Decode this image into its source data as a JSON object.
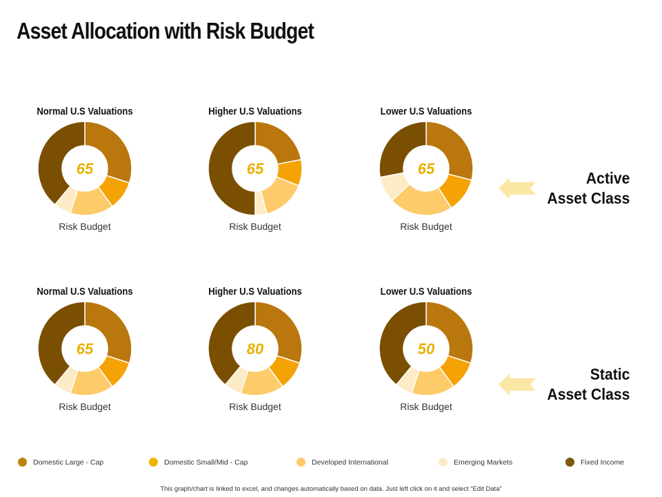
{
  "title": "Asset Allocation with Risk Budget",
  "colors": {
    "domestic_large_cap": "#B9770E",
    "domestic_small_mid_cap": "#F5A205",
    "developed_international": "#FDCB6A",
    "emerging_markets": "#FDEBC6",
    "fixed_income": "#7A4F01",
    "center_value": "#E8B200",
    "arrow": "#FBE7A4"
  },
  "rows": [
    {
      "label_line1": "Active",
      "label_line2": "Asset Class"
    },
    {
      "label_line1": "Static",
      "label_line2": "Asset Class"
    }
  ],
  "legend": [
    {
      "label": "Domestic Large - Cap",
      "color": "#B9860C"
    },
    {
      "label": "Domestic Small/Mid  - Cap",
      "color": "#F0B400"
    },
    {
      "label": "Developed International",
      "color": "#FDCB6A"
    },
    {
      "label": "Emerging  Markets",
      "color": "#FDEBC6"
    },
    {
      "label": "Fixed Income",
      "color": "#7A5C0A"
    }
  ],
  "footnote": "This graph/chart is linked to excel, and changes automatically based on data. Just left click on it and select “Edit Data”",
  "chart_data": [
    {
      "type": "pie",
      "row": "Active",
      "title": "Normal U.S Valuations",
      "center_value": "65",
      "sublabel": "Risk Budget",
      "labels": [
        "Domestic Large - Cap",
        "Domestic Small/Mid  - Cap",
        "Developed International",
        "Emerging  Markets",
        "Fixed Income"
      ],
      "values": [
        30,
        10,
        15,
        6,
        39
      ]
    },
    {
      "type": "pie",
      "row": "Active",
      "title": "Higher U.S Valuations",
      "center_value": "65",
      "sublabel": "Risk Budget",
      "labels": [
        "Domestic Large - Cap",
        "Domestic Small/Mid  - Cap",
        "Developed International",
        "Emerging  Markets",
        "Fixed Income"
      ],
      "values": [
        22,
        9,
        15,
        4,
        50
      ]
    },
    {
      "type": "pie",
      "row": "Active",
      "title": "Lower U.S Valuations",
      "center_value": "65",
      "sublabel": "Risk Budget",
      "labels": [
        "Domestic Large - Cap",
        "Domestic Small/Mid  - Cap",
        "Developed International",
        "Emerging  Markets",
        "Fixed Income"
      ],
      "values": [
        29,
        12,
        22,
        9,
        28
      ]
    },
    {
      "type": "pie",
      "row": "Static",
      "title": "Normal U.S Valuations",
      "center_value": "65",
      "sublabel": "Risk Budget",
      "labels": [
        "Domestic Large - Cap",
        "Domestic Small/Mid  - Cap",
        "Developed International",
        "Emerging  Markets",
        "Fixed Income"
      ],
      "values": [
        30,
        10,
        15,
        6,
        39
      ]
    },
    {
      "type": "pie",
      "row": "Static",
      "title": "Higher U.S Valuations",
      "center_value": "80",
      "sublabel": "Risk Budget",
      "labels": [
        "Domestic Large - Cap",
        "Domestic Small/Mid  - Cap",
        "Developed International",
        "Emerging  Markets",
        "Fixed Income"
      ],
      "values": [
        30,
        10,
        15,
        6,
        39
      ]
    },
    {
      "type": "pie",
      "row": "Static",
      "title": "Lower U.S Valuations",
      "center_value": "50",
      "sublabel": "Risk Budget",
      "labels": [
        "Domestic Large - Cap",
        "Domestic Small/Mid  - Cap",
        "Developed International",
        "Emerging  Markets",
        "Fixed Income"
      ],
      "values": [
        30,
        10,
        15,
        6,
        39
      ]
    }
  ]
}
